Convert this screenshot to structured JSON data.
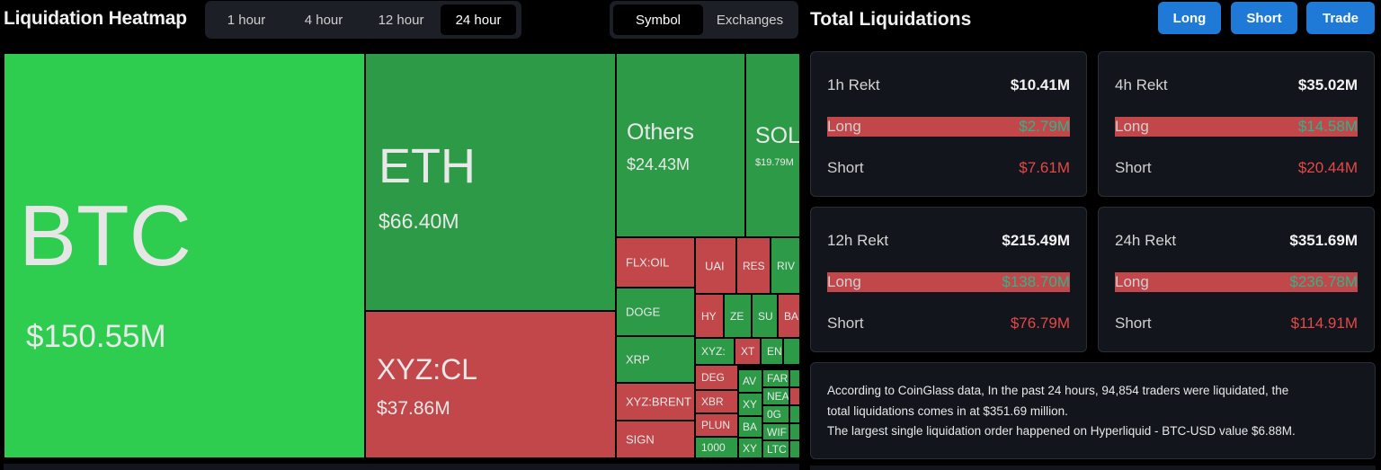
{
  "heatmap": {
    "title": "Liquidation Heatmap",
    "time_options": [
      "1 hour",
      "4 hour",
      "12 hour",
      "24 hour"
    ],
    "time_selected": "24 hour",
    "view_options": [
      "Symbol",
      "Exchanges"
    ],
    "view_selected": "Symbol",
    "tiles": {
      "btc": {
        "symbol": "BTC",
        "value": "$150.55M"
      },
      "eth": {
        "symbol": "ETH",
        "value": "$66.40M"
      },
      "xyzcl": {
        "symbol": "XYZ:CL",
        "value": "$37.86M"
      },
      "others": {
        "symbol": "Others",
        "value": "$24.43M"
      },
      "sol": {
        "symbol": "SOL",
        "value": "$19.79M"
      },
      "flxoil": {
        "symbol": "FLX:OIL"
      },
      "doge": {
        "symbol": "DOGE"
      },
      "xrp": {
        "symbol": "XRP"
      },
      "xyzbrent": {
        "symbol": "XYZ:BRENT"
      },
      "sign": {
        "symbol": "SIGN"
      },
      "uai": {
        "symbol": "UAI"
      },
      "res": {
        "symbol": "RES"
      },
      "riv": {
        "symbol": "RIV"
      },
      "hy": {
        "symbol": "HY"
      },
      "ze": {
        "symbol": "ZE"
      },
      "su": {
        "symbol": "SU"
      },
      "ba1": {
        "symbol": "BA"
      },
      "xyz2": {
        "symbol": "XYZ:"
      },
      "xt": {
        "symbol": "XT"
      },
      "en": {
        "symbol": "EN"
      },
      "deg": {
        "symbol": "DEG"
      },
      "av": {
        "symbol": "AV"
      },
      "far": {
        "symbol": "FAR"
      },
      "xbr": {
        "symbol": "XBR"
      },
      "xy3": {
        "symbol": "XY"
      },
      "nea": {
        "symbol": "NEA"
      },
      "plun": {
        "symbol": "PLUN"
      },
      "og": {
        "symbol": "0G"
      },
      "ba2": {
        "symbol": "BA"
      },
      "wif": {
        "symbol": "WIF"
      },
      "k1000": {
        "symbol": "1000"
      },
      "xy4": {
        "symbol": "XY"
      },
      "ltc": {
        "symbol": "LTC"
      }
    }
  },
  "total": {
    "title": "Total Liquidations",
    "buttons": {
      "long": "Long",
      "short": "Short",
      "trade": "Trade"
    },
    "cards": [
      {
        "label": "1h Rekt",
        "total": "$10.41M",
        "long_label": "Long",
        "long": "$2.79M",
        "short_label": "Short",
        "short": "$7.61M"
      },
      {
        "label": "4h Rekt",
        "total": "$35.02M",
        "long_label": "Long",
        "long": "$14.58M",
        "short_label": "Short",
        "short": "$20.44M"
      },
      {
        "label": "12h Rekt",
        "total": "$215.49M",
        "long_label": "Long",
        "long": "$138.70M",
        "short_label": "Short",
        "short": "$76.79M"
      },
      {
        "label": "24h Rekt",
        "total": "$351.69M",
        "long_label": "Long",
        "long": "$236.78M",
        "short_label": "Short",
        "short": "$114.91M"
      }
    ],
    "summary": [
      "According to CoinGlass data, In the past 24 hours, 94,854 traders were liquidated, the",
      "total liquidations comes in at $351.69 million.",
      "The largest single liquidation order happened on Hyperliquid - BTC-USD value $6.88M."
    ]
  },
  "colors": {
    "long_green": "#2bb58c",
    "short_red": "#e54848",
    "button_blue": "#1e7ad6",
    "tile_green": "#2ecc4f",
    "tile_red": "#c2474a"
  }
}
